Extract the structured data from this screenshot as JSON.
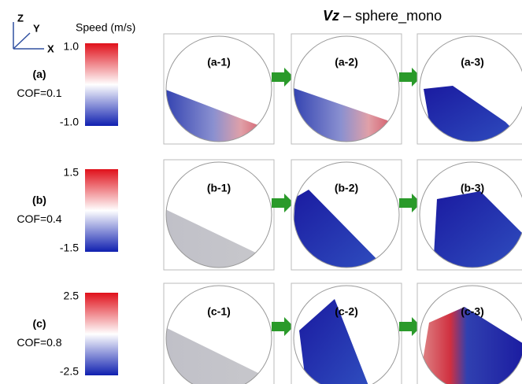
{
  "axes_icon": {
    "z": "Z",
    "y": "Y",
    "x": "X"
  },
  "colorbar_title": "Speed (m/s)",
  "title": {
    "symbol": "Vz",
    "text": " – sphere_mono"
  },
  "rows": [
    {
      "label": "(a)",
      "cof": "COF=0.1",
      "scale_max": "1.0",
      "scale_min": "-1.0",
      "panels": [
        "(a-1)",
        "(a-2)",
        "(a-3)"
      ]
    },
    {
      "label": "(b)",
      "cof": "COF=0.4",
      "scale_max": "1.5",
      "scale_min": "-1.5",
      "panels": [
        "(b-1)",
        "(b-2)",
        "(b-3)"
      ]
    },
    {
      "label": "(c)",
      "cof": "COF=0.8",
      "scale_max": "2.5",
      "scale_min": "-2.5",
      "panels": [
        "(c-1)",
        "(c-2)",
        "(c-3)"
      ]
    }
  ]
}
